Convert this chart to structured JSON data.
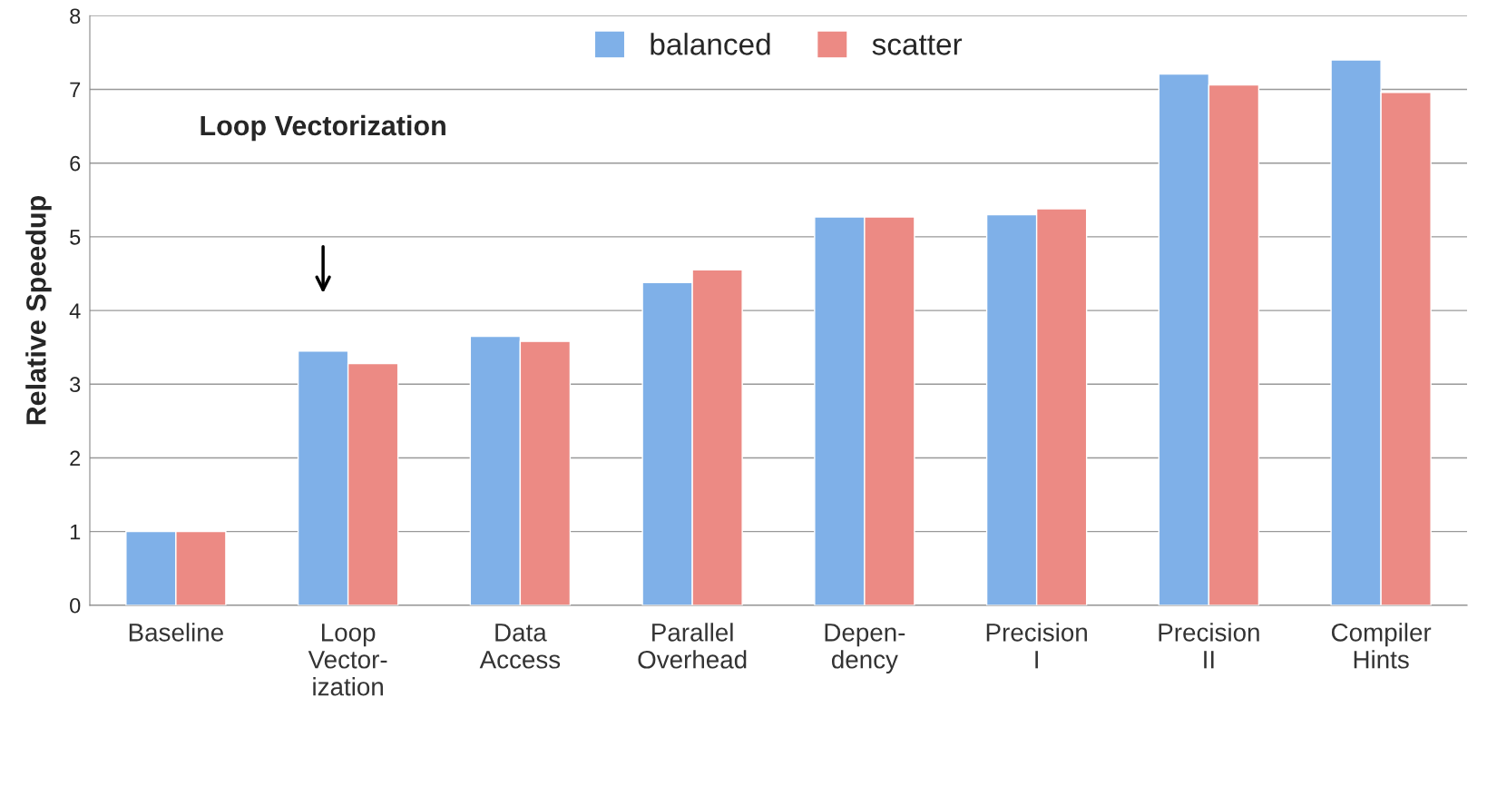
{
  "chart_data": {
    "type": "bar",
    "ylabel": "Relative Speedup",
    "categories": [
      "Baseline",
      "Loop\nVector-\nization",
      "Data\nAccess",
      "Parallel\nOverhead",
      "Depen-\ndency",
      "Precision\nI",
      "Precision\nII",
      "Compiler\nHints"
    ],
    "series": [
      {
        "name": "balanced",
        "color": "#7fb0e8",
        "values": [
          1,
          3.45,
          3.65,
          4.38,
          5.27,
          5.3,
          7.21,
          7.4
        ]
      },
      {
        "name": "scatter",
        "color": "#ec8a84",
        "values": [
          1,
          3.28,
          3.58,
          4.55,
          5.27,
          5.38,
          7.06,
          6.96
        ]
      }
    ],
    "ylim": [
      0,
      8
    ],
    "yticks": [
      0,
      1,
      2,
      3,
      4,
      5,
      6,
      7,
      8
    ],
    "grid": "y",
    "legend": "top",
    "annotations": [
      "Loop Vectorization"
    ]
  }
}
